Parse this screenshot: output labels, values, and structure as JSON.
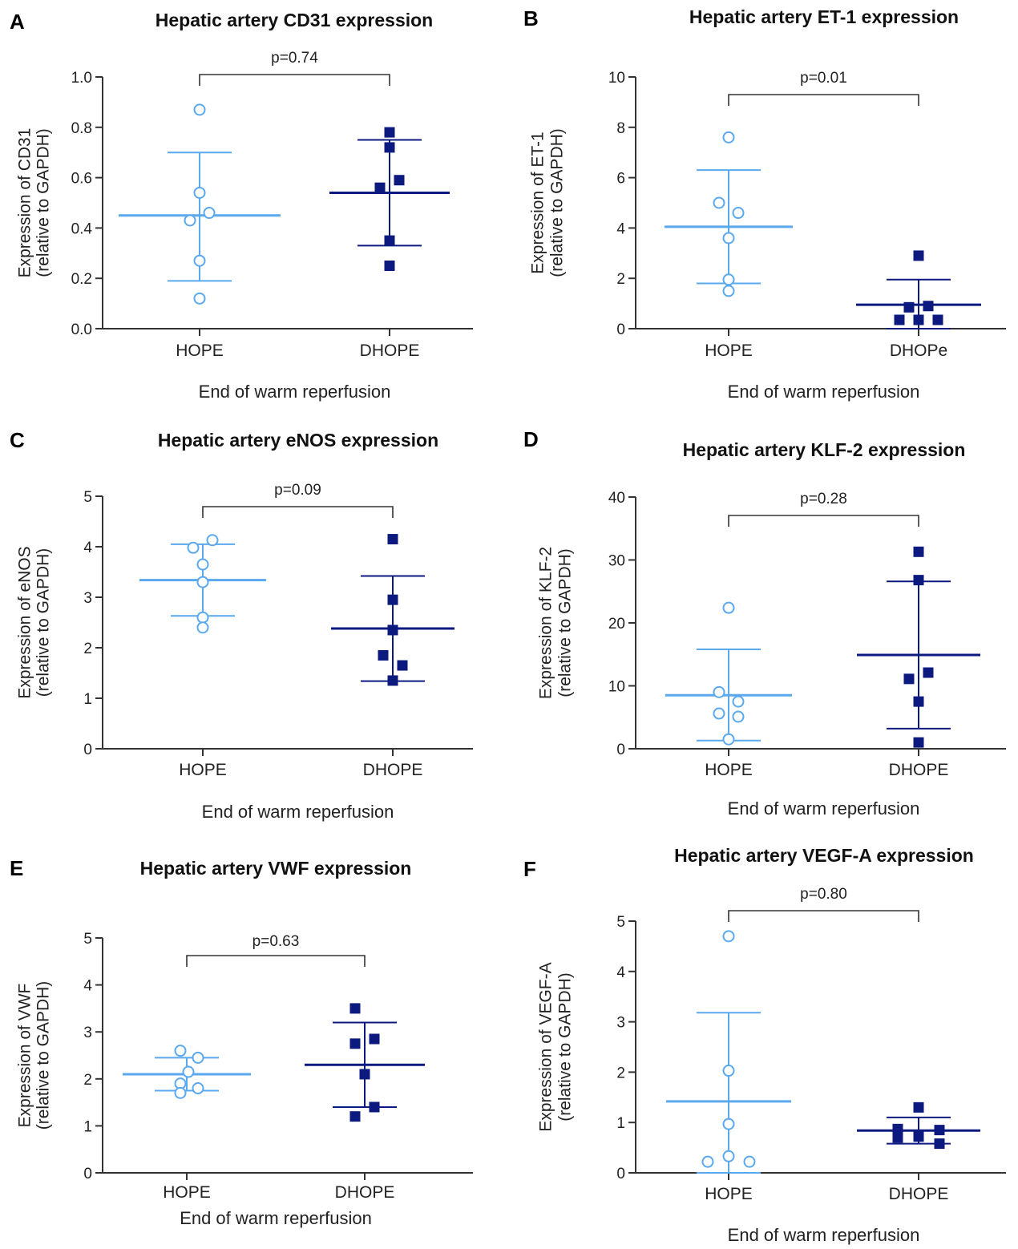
{
  "styles": {
    "hope_color": "#5aa8ee",
    "dhope_color": "#0c1a80",
    "hope_marker": "open-circle",
    "dhope_marker": "filled-square"
  },
  "chart_data": [
    {
      "panel": "A",
      "type": "scatter",
      "title": "Hepatic artery CD31 expression",
      "ylabel_line1": "Expression of CD31",
      "ylabel_line2": "(relative to GAPDH)",
      "xlabel": "End of warm reperfusion",
      "categories": [
        "HOPE",
        "DHOPE"
      ],
      "ylim": [
        0,
        1.0
      ],
      "yticks": [
        "0.0",
        "0.2",
        "0.4",
        "0.6",
        "0.8",
        "1.0"
      ],
      "p_value": "p=0.74",
      "series": [
        {
          "values": [
            0.87,
            0.54,
            0.46,
            0.43,
            0.27,
            0.12
          ],
          "mean": 0.45,
          "sd_upper": 0.7,
          "sd_lower": 0.19
        },
        {
          "values": [
            0.78,
            0.72,
            0.59,
            0.56,
            0.35,
            0.25
          ],
          "mean": 0.54,
          "sd_upper": 0.75,
          "sd_lower": 0.33
        }
      ]
    },
    {
      "panel": "B",
      "type": "scatter",
      "title": "Hepatic artery ET-1 expression",
      "ylabel_line1": "Expression of ET-1",
      "ylabel_line2": "(relative to GAPDH)",
      "xlabel": "End of warm reperfusion",
      "categories": [
        "HOPE",
        "DHOPe"
      ],
      "ylim": [
        0,
        10
      ],
      "yticks": [
        "0",
        "2",
        "4",
        "6",
        "8",
        "10"
      ],
      "p_value": "p=0.01",
      "series": [
        {
          "values": [
            7.6,
            5.0,
            4.6,
            3.6,
            1.95,
            1.5
          ],
          "mean": 4.05,
          "sd_upper": 6.3,
          "sd_lower": 1.8
        },
        {
          "values": [
            2.9,
            0.9,
            0.85,
            0.35,
            0.35,
            0.35
          ],
          "mean": 0.95,
          "sd_upper": 1.95,
          "sd_lower": 0.0
        }
      ]
    },
    {
      "panel": "C",
      "type": "scatter",
      "title": "Hepatic artery eNOS expression",
      "ylabel_line1": "Expression of eNOS",
      "ylabel_line2": "(relative to GAPDH)",
      "xlabel": "End of warm reperfusion",
      "categories": [
        "HOPE",
        "DHOPE"
      ],
      "ylim": [
        0,
        5
      ],
      "yticks": [
        "0",
        "1",
        "2",
        "3",
        "4",
        "5"
      ],
      "p_value": "p=0.09",
      "series": [
        {
          "values": [
            4.13,
            3.98,
            3.65,
            3.3,
            2.6,
            2.4
          ],
          "mean": 3.34,
          "sd_upper": 4.05,
          "sd_lower": 2.63
        },
        {
          "values": [
            4.15,
            2.95,
            2.35,
            1.85,
            1.65,
            1.35
          ],
          "mean": 2.38,
          "sd_upper": 3.42,
          "sd_lower": 1.34
        }
      ]
    },
    {
      "panel": "D",
      "type": "scatter",
      "title": "Hepatic artery KLF-2 expression",
      "ylabel_line1": "Expression of KLF-2",
      "ylabel_line2": "(relative to GAPDH)",
      "xlabel": "End of warm reperfusion",
      "categories": [
        "HOPE",
        "DHOPE"
      ],
      "ylim": [
        0,
        40
      ],
      "yticks": [
        "0",
        "10",
        "20",
        "30",
        "40"
      ],
      "p_value": "p=0.28",
      "series": [
        {
          "values": [
            22.4,
            9.0,
            7.5,
            5.6,
            5.1,
            1.5
          ],
          "mean": 8.5,
          "sd_upper": 15.8,
          "sd_lower": 1.3
        },
        {
          "values": [
            31.3,
            26.8,
            12.1,
            11.1,
            7.5,
            1.0
          ],
          "mean": 14.9,
          "sd_upper": 26.6,
          "sd_lower": 3.2
        }
      ]
    },
    {
      "panel": "E",
      "type": "scatter",
      "title": "Hepatic artery VWF expression",
      "ylabel_line1": "Expression of VWF",
      "ylabel_line2": "(relative to GAPDH)",
      "xlabel": "End of warm reperfusion",
      "categories": [
        "HOPE",
        "DHOPE"
      ],
      "ylim": [
        0,
        5
      ],
      "yticks": [
        "0",
        "1",
        "2",
        "3",
        "4",
        "5"
      ],
      "p_value": "p=0.63",
      "series": [
        {
          "values": [
            2.6,
            2.45,
            2.15,
            1.9,
            1.8,
            1.7
          ],
          "mean": 2.1,
          "sd_upper": 2.45,
          "sd_lower": 1.75
        },
        {
          "values": [
            3.5,
            2.85,
            2.75,
            2.1,
            1.4,
            1.2
          ],
          "mean": 2.3,
          "sd_upper": 3.2,
          "sd_lower": 1.4
        }
      ]
    },
    {
      "panel": "F",
      "type": "scatter",
      "title": "Hepatic artery VEGF-A expression",
      "ylabel_line1": "Expression of VEGF-A",
      "ylabel_line2": "(relative to GAPDH)",
      "xlabel": "End of warm reperfusion",
      "categories": [
        "HOPE",
        "DHOPE"
      ],
      "ylim": [
        0,
        5
      ],
      "yticks": [
        "0",
        "1",
        "2",
        "3",
        "4",
        "5"
      ],
      "p_value": "p=0.80",
      "series": [
        {
          "values": [
            4.7,
            2.03,
            0.97,
            0.33,
            0.22,
            0.22
          ],
          "mean": 1.42,
          "sd_upper": 3.18,
          "sd_lower": 0.0
        },
        {
          "values": [
            1.3,
            0.87,
            0.85,
            0.72,
            0.7,
            0.58
          ],
          "mean": 0.84,
          "sd_upper": 1.1,
          "sd_lower": 0.58
        }
      ]
    }
  ]
}
